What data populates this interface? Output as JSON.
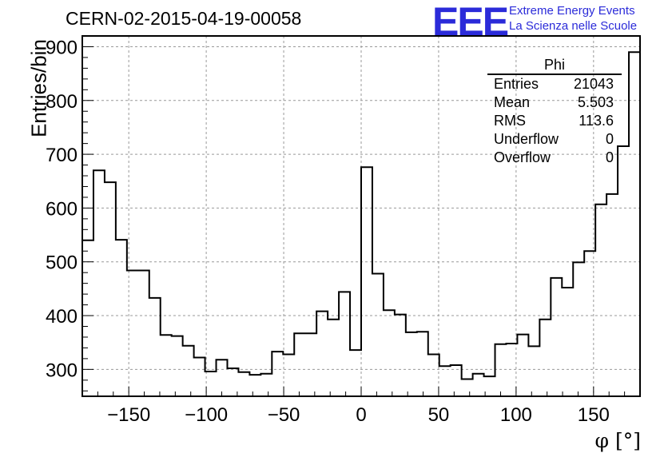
{
  "chart_data": {
    "type": "bar",
    "title": "CERN-02-2015-04-19-00058",
    "xlabel": "φ [°]",
    "ylabel": "Entries/bin",
    "xlim": [
      -180,
      180
    ],
    "ylim": [
      250,
      920
    ],
    "xticks": [
      -150,
      -100,
      -50,
      0,
      50,
      100,
      150
    ],
    "yticks": [
      300,
      400,
      500,
      600,
      700,
      800,
      900
    ],
    "grid": true,
    "bin_width": 7.2,
    "bin_edges_start": -180,
    "values": [
      540,
      670,
      648,
      541,
      484,
      484,
      433,
      364,
      362,
      344,
      322,
      296,
      318,
      302,
      295,
      290,
      292,
      333,
      328,
      367,
      367,
      408,
      393,
      444,
      336,
      676,
      478,
      410,
      402,
      369,
      370,
      328,
      306,
      308,
      282,
      292,
      287,
      347,
      348,
      365,
      343,
      393,
      470,
      452,
      499,
      520,
      607,
      626,
      715,
      890
    ]
  },
  "logo": {
    "mark": "EEE",
    "line1": "Extreme Energy Events",
    "line2": "La Scienza nelle Scuole"
  },
  "stats": {
    "name": "Phi",
    "rows": [
      {
        "label": "Entries",
        "value": "21043"
      },
      {
        "label": "Mean",
        "value": "5.503"
      },
      {
        "label": "RMS",
        "value": "113.6"
      },
      {
        "label": "Underflow",
        "value": "0"
      },
      {
        "label": "Overflow",
        "value": "0"
      }
    ]
  },
  "colors": {
    "line": "#000000",
    "grid": "#999999",
    "logo": "#2b2bd9"
  }
}
